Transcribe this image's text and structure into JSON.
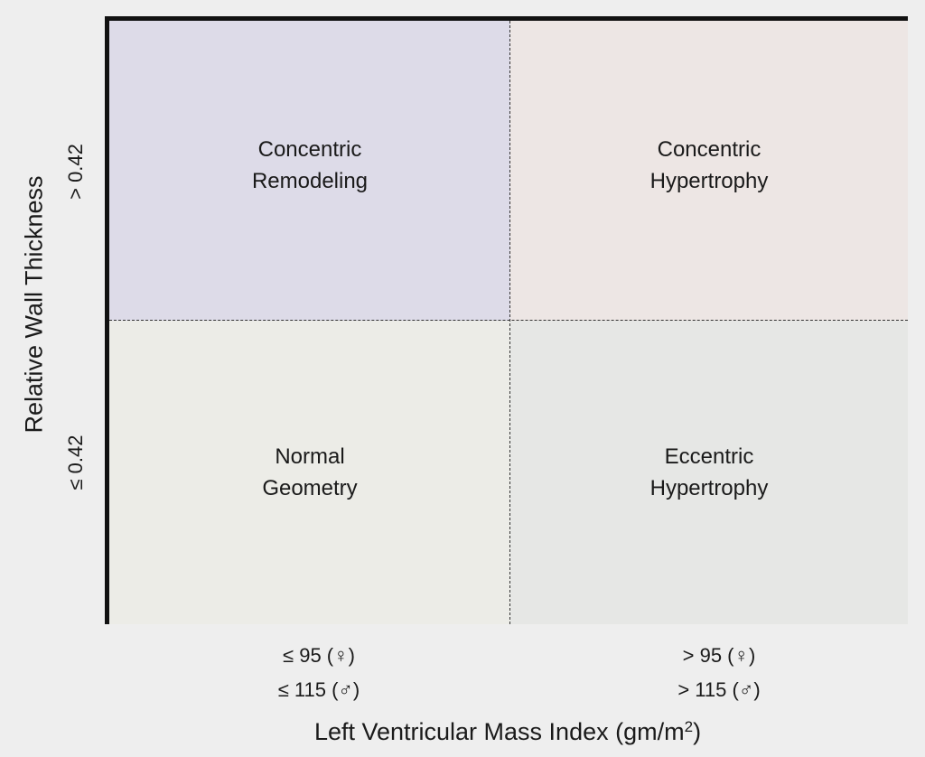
{
  "quadrants": {
    "top_left": "Concentric\nRemodeling",
    "top_right": "Concentric\nHypertrophy",
    "bottom_left": "Normal\nGeometry",
    "bottom_right": "Eccentric\nHypertrophy"
  },
  "y_axis": {
    "label": "Relative Wall Thickness",
    "tick_high": "> 0.42",
    "tick_low": "≤ 0.42"
  },
  "x_axis": {
    "label_main": "Left Ventricular Mass Index (gm/m",
    "label_sup": "2",
    "label_end": ")",
    "low_female": "≤ 95 (♀)",
    "low_male": "≤ 115 (♂)",
    "high_female": "> 95 (♀)",
    "high_male": "> 115 (♂)"
  },
  "colors": {
    "concentric_remodeling": "#dddbe8",
    "concentric_hypertrophy": "#ede6e4",
    "normal_geometry": "#ecece7",
    "eccentric_hypertrophy": "#e6e7e5"
  }
}
